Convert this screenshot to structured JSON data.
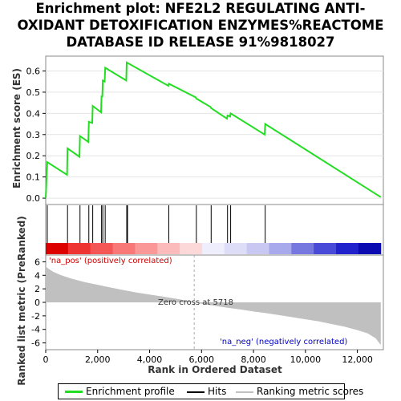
{
  "title_lines": [
    "Enrichment plot: NFE2L2 REGULATING ANTI-",
    "OXIDANT DETOXIFICATION ENZYMES%REACTOME",
    "DATABASE ID RELEASE 91%9818027"
  ],
  "colors": {
    "enrichment_line": "#22dd22",
    "hit_line": "#000000",
    "metric_fill": "#c0c0c0",
    "pos_label": "#cc0000",
    "neg_label": "#0000cc"
  },
  "chart_data": [
    {
      "type": "line",
      "ylabel": "Enrichment score (ES)",
      "xlim": [
        0,
        13000
      ],
      "ylim": [
        -0.03,
        0.67
      ],
      "yticks": [
        0.0,
        0.1,
        0.2,
        0.3,
        0.4,
        0.5,
        0.6
      ],
      "ytick_labels": [
        "0.0",
        "0.1",
        "0.2",
        "0.3",
        "0.4",
        "0.5",
        "0.6"
      ],
      "series": [
        {
          "name": "Enrichment profile",
          "points": [
            [
              0,
              0.0
            ],
            [
              60,
              0.17
            ],
            [
              820,
              0.11
            ],
            [
              840,
              0.235
            ],
            [
              1300,
              0.195
            ],
            [
              1320,
              0.293
            ],
            [
              1640,
              0.265
            ],
            [
              1660,
              0.36
            ],
            [
              1790,
              0.355
            ],
            [
              1810,
              0.435
            ],
            [
              2130,
              0.405
            ],
            [
              2150,
              0.48
            ],
            [
              2180,
              0.48
            ],
            [
              2200,
              0.555
            ],
            [
              2270,
              0.55
            ],
            [
              2290,
              0.615
            ],
            [
              3100,
              0.555
            ],
            [
              3120,
              0.64
            ],
            [
              4720,
              0.53
            ],
            [
              4740,
              0.54
            ],
            [
              5780,
              0.475
            ],
            [
              5800,
              0.47
            ],
            [
              6350,
              0.43
            ],
            [
              6370,
              0.425
            ],
            [
              6980,
              0.375
            ],
            [
              7000,
              0.39
            ],
            [
              7100,
              0.385
            ],
            [
              7120,
              0.4
            ],
            [
              8430,
              0.3
            ],
            [
              8450,
              0.35
            ],
            [
              12900,
              0.005
            ]
          ]
        }
      ]
    },
    {
      "type": "bar",
      "name": "Hits",
      "hit_positions": [
        60,
        840,
        1320,
        1660,
        1810,
        2150,
        2200,
        2290,
        3120,
        3150,
        4740,
        5800,
        6370,
        7000,
        7120,
        8450
      ]
    },
    {
      "type": "area",
      "name": "Ranking metric scores",
      "xlabel": "Rank in Ordered Dataset",
      "ylabel": "Ranked list metric (PreRanked)",
      "xlim": [
        0,
        13000
      ],
      "ylim": [
        -7,
        7
      ],
      "xticks": [
        0,
        2000,
        4000,
        6000,
        8000,
        10000,
        12000
      ],
      "xtick_labels": [
        "0",
        "2,000",
        "4,000",
        "6,000",
        "8,000",
        "10,000",
        "12,000"
      ],
      "yticks": [
        -6,
        -4,
        -2,
        0,
        2,
        4,
        6
      ],
      "ytick_labels": [
        "-6",
        "-4",
        "-2",
        "0",
        "2",
        "4",
        "6"
      ],
      "total_rank": 12900,
      "zero_cross": 5718,
      "points": [
        [
          0,
          5.3
        ],
        [
          100,
          5.0
        ],
        [
          300,
          4.5
        ],
        [
          600,
          4.0
        ],
        [
          1000,
          3.5
        ],
        [
          1500,
          3.0
        ],
        [
          2000,
          2.6
        ],
        [
          2500,
          2.2
        ],
        [
          3000,
          1.8
        ],
        [
          3500,
          1.45
        ],
        [
          4000,
          1.15
        ],
        [
          4500,
          0.85
        ],
        [
          5000,
          0.55
        ],
        [
          5500,
          0.2
        ],
        [
          5718,
          0.0
        ],
        [
          6000,
          -0.2
        ],
        [
          6500,
          -0.5
        ],
        [
          7000,
          -0.8
        ],
        [
          7500,
          -1.05
        ],
        [
          8000,
          -1.35
        ],
        [
          8500,
          -1.6
        ],
        [
          9000,
          -1.9
        ],
        [
          9500,
          -2.2
        ],
        [
          10000,
          -2.5
        ],
        [
          10500,
          -2.8
        ],
        [
          11000,
          -3.2
        ],
        [
          11500,
          -3.6
        ],
        [
          12000,
          -4.1
        ],
        [
          12400,
          -4.6
        ],
        [
          12700,
          -5.3
        ],
        [
          12900,
          -6.3
        ]
      ],
      "annotations": {
        "zero_cross_label": "Zero cross at 5718",
        "pos_label": "'na_pos' (positively correlated)",
        "neg_label": "'na_neg' (negatively correlated)"
      }
    }
  ],
  "rank_bar_colors": [
    "#dd0000",
    "#ee3333",
    "#f45555",
    "#f87777",
    "#fa9898",
    "#fcbbbb",
    "#fdd8d8",
    "#eeeefc",
    "#ddddf8",
    "#c8c8f2",
    "#a8a8ec",
    "#7777e0",
    "#4a4ad8",
    "#2222cc",
    "#0a0ab0"
  ],
  "legend": [
    {
      "label": "Enrichment profile",
      "color": "#22dd22"
    },
    {
      "label": "Hits",
      "color": "#000000"
    },
    {
      "label": "Ranking metric scores",
      "color": "#c0c0c0"
    }
  ]
}
